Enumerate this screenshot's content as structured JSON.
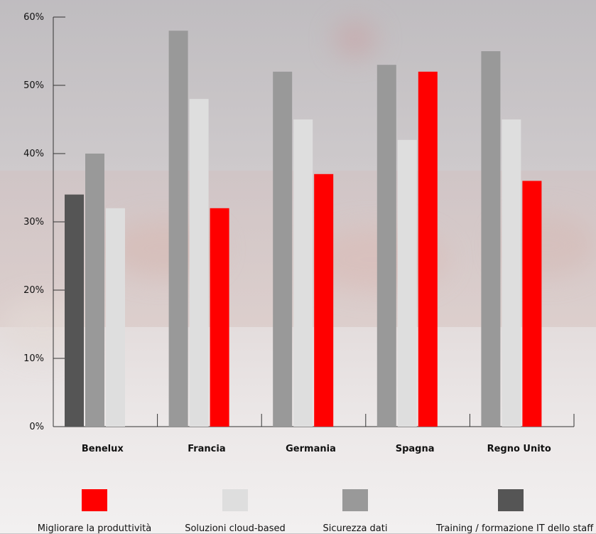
{
  "chart_data": {
    "type": "bar",
    "categories": [
      "Benelux",
      "Francia",
      "Germania",
      "Spagna",
      "Regno Unito"
    ],
    "ylim": [
      0,
      60
    ],
    "yticks": [
      "0%",
      "10%",
      "20%",
      "30%",
      "40%",
      "50%",
      "60%"
    ],
    "grid": false,
    "legend_placement": "bottom",
    "series": [
      {
        "name": "Training / formazione IT dello staff",
        "color": "#555555",
        "values": [
          34,
          null,
          null,
          null,
          null
        ]
      },
      {
        "name": "Sicurezza dati",
        "color": "#999999",
        "values": [
          40,
          58,
          52,
          53,
          55
        ]
      },
      {
        "name": "Soluzioni cloud-based",
        "color": "#dedede",
        "values": [
          32,
          48,
          45,
          42,
          45
        ]
      },
      {
        "name": "Migliorare la produttività",
        "color": "#ff0000",
        "values": [
          null,
          32,
          37,
          52,
          36
        ]
      }
    ]
  },
  "legend": [
    {
      "label": "Migliorare la produttività",
      "color": "#ff0000"
    },
    {
      "label": "Soluzioni cloud-based",
      "color": "#dedede"
    },
    {
      "label": "Sicurezza dati",
      "color": "#999999"
    },
    {
      "label": "Training / formazione IT dello staff",
      "color": "#555555"
    }
  ]
}
